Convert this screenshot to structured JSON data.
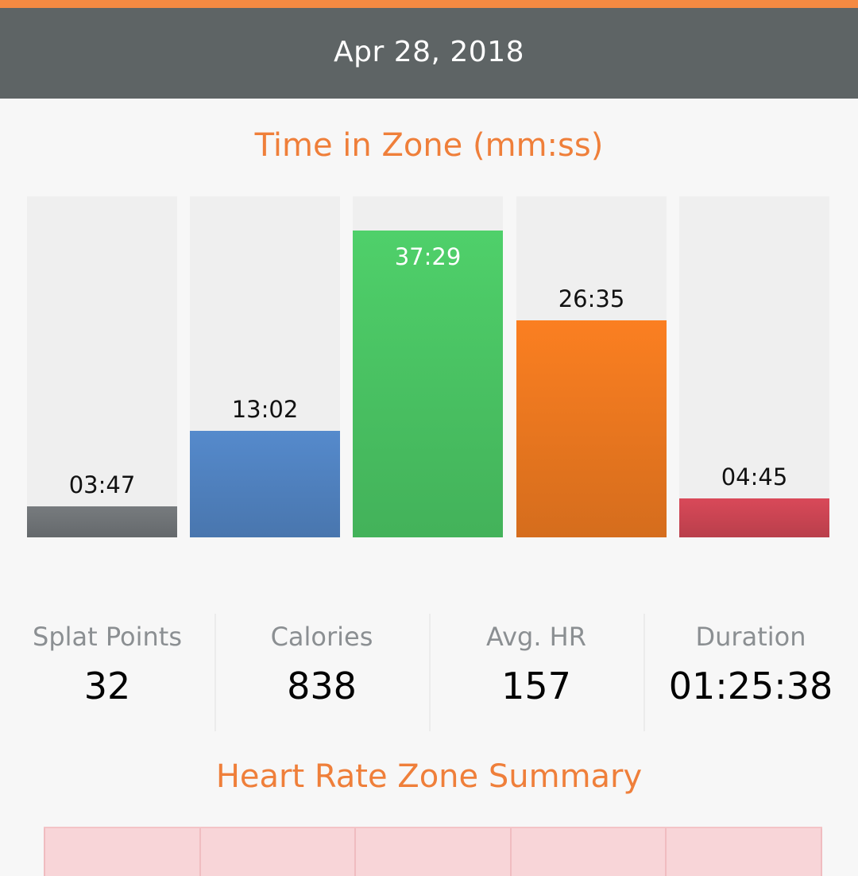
{
  "header": {
    "date": "Apr 28, 2018"
  },
  "chart_data": {
    "type": "bar",
    "title": "Time in Zone (mm:ss)",
    "categories": [
      "Grey",
      "Blue",
      "Green",
      "Orange",
      "Red"
    ],
    "values": [
      3.783,
      13.033,
      37.483,
      26.583,
      4.75
    ],
    "data_labels": [
      "03:47",
      "13:02",
      "37:29",
      "26:35",
      "04:45"
    ],
    "colors": [
      "#6e7275",
      "#4f80bd",
      "#49c162",
      "#e8761f",
      "#c94452"
    ],
    "label_colors": [
      "#111111",
      "#111111",
      "#ffffff",
      "#111111",
      "#111111"
    ],
    "ylim": [
      0,
      41.7
    ],
    "grid": false
  },
  "stats": [
    {
      "label": "Splat Points",
      "value": "32"
    },
    {
      "label": "Calories",
      "value": "838"
    },
    {
      "label": "Avg. HR",
      "value": "157"
    },
    {
      "label": "Duration",
      "value": "01:25:38"
    }
  ],
  "summary": {
    "title": "Heart Rate Zone Summary"
  }
}
